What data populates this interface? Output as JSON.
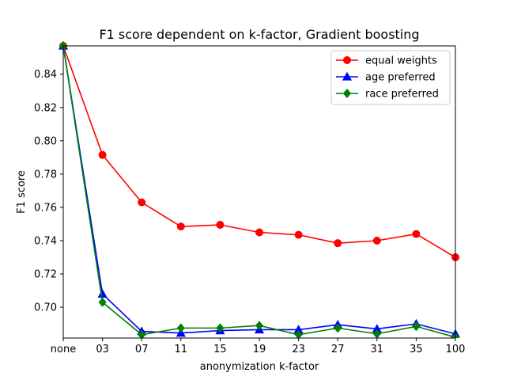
{
  "chart_data": {
    "type": "line",
    "title": "F1 score dependent on k-factor, Gradient boosting",
    "xlabel": "anonymization k-factor",
    "ylabel": "F1 score",
    "categories": [
      "none",
      "03",
      "07",
      "11",
      "15",
      "19",
      "23",
      "27",
      "31",
      "35",
      "100"
    ],
    "ylim": [
      0.6815,
      0.857
    ],
    "yticks": [
      0.7,
      0.72,
      0.74,
      0.76,
      0.78,
      0.8,
      0.82,
      0.84
    ],
    "ytick_labels": [
      "0.70",
      "0.72",
      "0.74",
      "0.76",
      "0.78",
      "0.80",
      "0.82",
      "0.84"
    ],
    "grid": false,
    "legend_position": "top-right",
    "series": [
      {
        "name": "equal weights",
        "color": "#ff0000",
        "marker": "circle",
        "values": [
          0.857,
          0.7915,
          0.763,
          0.7485,
          0.7495,
          0.745,
          0.7435,
          0.7385,
          0.74,
          0.744,
          0.73
        ]
      },
      {
        "name": "age preferred",
        "color": "#0000ff",
        "marker": "triangle",
        "values": [
          0.857,
          0.708,
          0.6855,
          0.6845,
          0.686,
          0.6865,
          0.6865,
          0.6895,
          0.687,
          0.69,
          0.684
        ]
      },
      {
        "name": "race preferred",
        "color": "#008000",
        "marker": "diamond",
        "values": [
          0.857,
          0.703,
          0.6835,
          0.6875,
          0.6875,
          0.689,
          0.6835,
          0.6875,
          0.684,
          0.6885,
          0.682
        ]
      }
    ]
  }
}
